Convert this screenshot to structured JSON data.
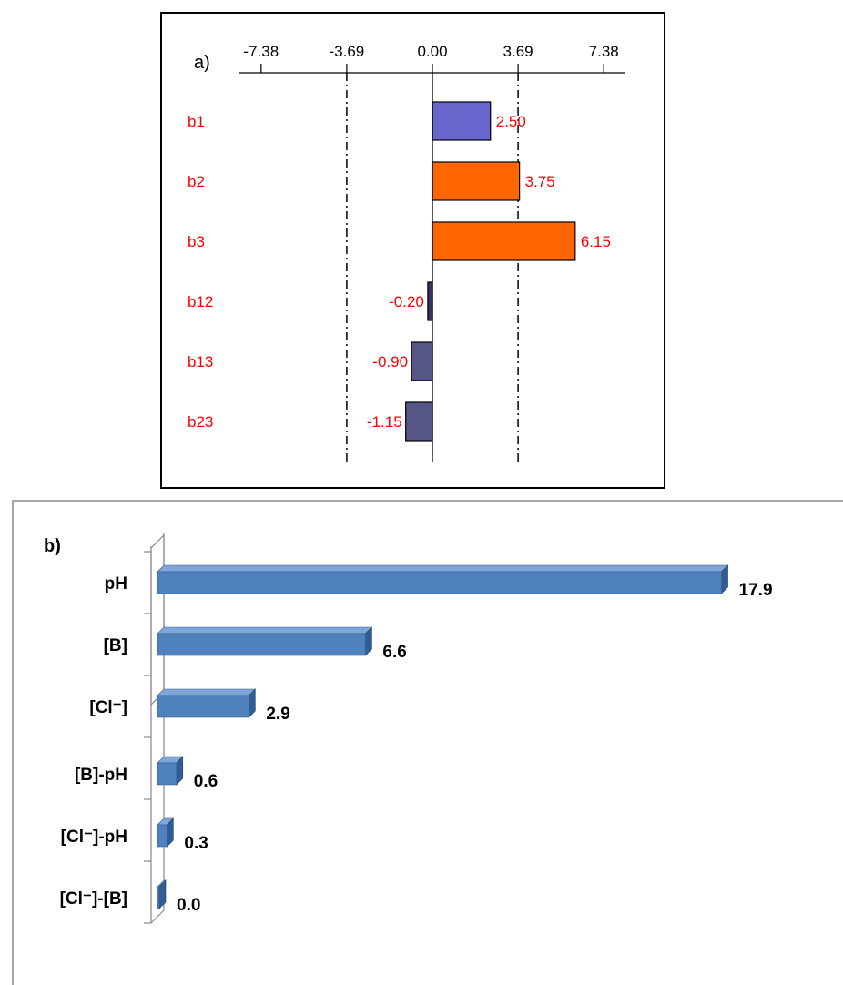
{
  "chart_data": [
    {
      "panel_label": "a)",
      "type": "bar",
      "orientation": "horizontal",
      "categories": [
        "b1",
        "b2",
        "b3",
        "b12",
        "b13",
        "b23"
      ],
      "values": [
        2.5,
        3.75,
        6.15,
        -0.2,
        -0.9,
        -1.15
      ],
      "value_labels": [
        "2.50",
        "3.75",
        "6.15",
        "-0.20",
        "-0.90",
        "-1.15"
      ],
      "bar_colors": [
        "#6666cc",
        "#ff6600",
        "#ff6600",
        "#333366",
        "#555588",
        "#555588"
      ],
      "x_ticks": [
        -7.38,
        -3.69,
        0.0,
        3.69,
        7.38
      ],
      "x_tick_labels": [
        "-7.38",
        "-3.69",
        "0.00",
        "3.69",
        "7.38"
      ],
      "xlim": [
        -7.38,
        7.38
      ],
      "reference_lines": [
        -3.69,
        3.69
      ],
      "category_color": "#ff0000",
      "value_label_color": "#ff0000"
    },
    {
      "panel_label": "b)",
      "type": "bar",
      "orientation": "horizontal",
      "style": "3d",
      "categories": [
        "pH",
        "[B]",
        "[Cl⁻]",
        "[B]-pH",
        "[Cl⁻]-pH",
        "[Cl⁻]-[B]"
      ],
      "values": [
        17.9,
        6.6,
        2.9,
        0.6,
        0.3,
        0.0
      ],
      "value_labels": [
        "17.9",
        "6.6",
        "2.9",
        "0.6",
        "0.3",
        "0.0"
      ],
      "xlim": [
        0,
        18
      ],
      "bar_color": "#4f81bd"
    }
  ]
}
